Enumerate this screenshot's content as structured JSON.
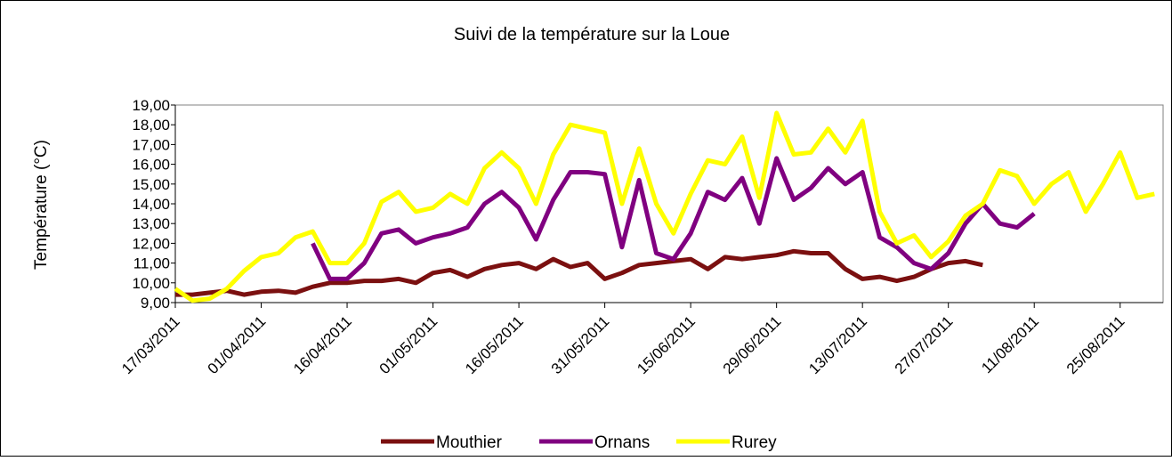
{
  "chart_data": {
    "type": "line",
    "title": "Suivi de la température sur la Loue",
    "y_label": "Température (°C)",
    "categories": [
      "17/03/2011",
      null,
      null,
      null,
      null,
      "01/04/2011",
      null,
      null,
      null,
      null,
      "16/04/2011",
      null,
      null,
      null,
      null,
      "01/05/2011",
      null,
      null,
      null,
      null,
      "16/05/2011",
      null,
      null,
      null,
      null,
      "31/05/2011",
      null,
      null,
      null,
      null,
      "15/06/2011",
      null,
      null,
      null,
      null,
      "29/06/2011",
      null,
      null,
      null,
      null,
      "13/07/2011",
      null,
      null,
      null,
      null,
      "27/07/2011",
      null,
      null,
      null,
      null,
      "11/08/2011",
      null,
      null,
      null,
      null,
      "25/08/2011",
      null,
      null
    ],
    "series": [
      {
        "name": "Mouthier",
        "color": "#7b1010",
        "values": [
          9.4,
          9.4,
          9.5,
          9.6,
          9.4,
          9.55,
          9.6,
          9.5,
          9.8,
          10.0,
          10.0,
          10.1,
          10.1,
          10.2,
          10.0,
          10.5,
          10.65,
          10.3,
          10.7,
          10.9,
          11.0,
          10.7,
          11.2,
          10.8,
          11.0,
          10.2,
          10.5,
          10.9,
          11.0,
          11.1,
          11.2,
          10.7,
          11.3,
          11.2,
          11.3,
          11.4,
          11.6,
          11.5,
          11.5,
          10.7,
          10.2,
          10.3,
          10.1,
          10.3,
          10.7,
          11.0,
          11.1,
          10.9,
          null,
          null,
          null,
          null,
          null,
          null,
          null,
          null,
          null,
          null
        ]
      },
      {
        "name": "Ornans",
        "color": "#800080",
        "values": [
          null,
          null,
          null,
          null,
          null,
          null,
          null,
          null,
          12.0,
          10.2,
          10.2,
          11.0,
          12.5,
          12.7,
          12.0,
          12.3,
          12.5,
          12.8,
          14.0,
          14.6,
          13.8,
          12.2,
          14.2,
          15.6,
          15.6,
          15.5,
          11.8,
          15.2,
          11.5,
          11.2,
          12.5,
          14.6,
          14.2,
          15.3,
          13.0,
          16.3,
          14.2,
          14.8,
          15.8,
          15.0,
          15.6,
          12.3,
          11.8,
          11.0,
          10.7,
          11.5,
          13.0,
          14.0,
          13.0,
          12.8,
          13.5,
          null,
          null,
          null,
          null,
          null,
          null,
          null
        ]
      },
      {
        "name": "Rurey",
        "color": "#ffff00",
        "values": [
          9.7,
          9.1,
          9.2,
          9.7,
          10.6,
          11.3,
          11.5,
          12.3,
          12.6,
          11.0,
          11.0,
          12.0,
          14.1,
          14.6,
          13.6,
          13.8,
          14.5,
          14.0,
          15.8,
          16.6,
          15.8,
          14.0,
          16.5,
          18.0,
          17.8,
          17.6,
          14.0,
          16.8,
          14.0,
          12.5,
          14.5,
          16.2,
          16.0,
          17.4,
          14.3,
          18.6,
          16.5,
          16.6,
          17.8,
          16.6,
          18.2,
          13.6,
          12.0,
          12.4,
          11.3,
          12.1,
          13.4,
          14.0,
          15.7,
          15.4,
          14.0,
          15.0,
          15.6,
          13.6,
          15.0,
          16.6,
          14.3,
          14.5
        ]
      }
    ],
    "ylim": [
      9,
      19
    ],
    "yticks": [
      {
        "value": 9,
        "label": "9,00"
      },
      {
        "value": 10,
        "label": "10,00"
      },
      {
        "value": 11,
        "label": "11,00"
      },
      {
        "value": 12,
        "label": "12,00"
      },
      {
        "value": 13,
        "label": "13,00"
      },
      {
        "value": 14,
        "label": "14,00"
      },
      {
        "value": 15,
        "label": "15,00"
      },
      {
        "value": 16,
        "label": "16,00"
      },
      {
        "value": 17,
        "label": "17,00"
      },
      {
        "value": 18,
        "label": "18,00"
      },
      {
        "value": 19,
        "label": "19,00"
      }
    ],
    "legend": "bottom"
  }
}
